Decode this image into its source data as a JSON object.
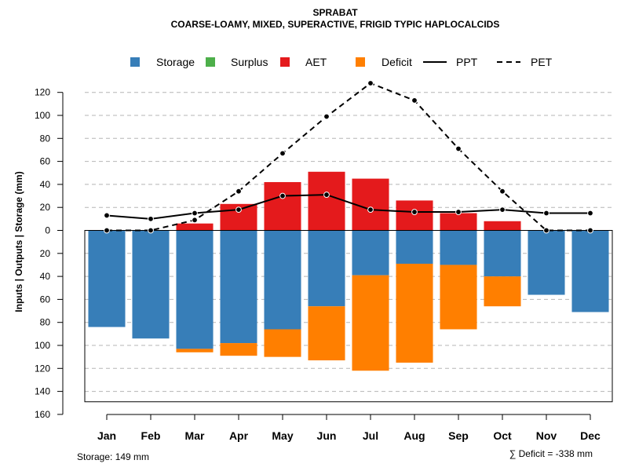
{
  "chart_data": {
    "type": "bar",
    "title": "SPRABAT",
    "subtitle": "COARSE-LOAMY, MIXED, SUPERACTIVE, FRIGID TYPIC HAPLOCALCIDS",
    "ylabel": "Inputs | Outputs | Storage    (mm)",
    "categories": [
      "Jan",
      "Feb",
      "Mar",
      "Apr",
      "May",
      "Jun",
      "Jul",
      "Aug",
      "Sep",
      "Oct",
      "Nov",
      "Dec"
    ],
    "ylim": [
      -160,
      130
    ],
    "yticks": [
      120,
      100,
      80,
      60,
      40,
      20,
      0,
      -20,
      -40,
      -60,
      -80,
      -100,
      -120,
      -140,
      -160
    ],
    "ytick_labels": [
      "120",
      "100",
      "80",
      "60",
      "40",
      "20",
      "0",
      "20",
      "40",
      "60",
      "80",
      "100",
      "120",
      "140",
      "160"
    ],
    "grid": true,
    "legend": [
      {
        "name": "Storage",
        "kind": "box",
        "color": "#377EB8"
      },
      {
        "name": "Surplus",
        "kind": "box",
        "color": "#4DAF4A"
      },
      {
        "name": "AET",
        "kind": "box",
        "color": "#E41A1C"
      },
      {
        "name": "Deficit",
        "kind": "box",
        "color": "#FF7F00"
      },
      {
        "name": "PPT",
        "kind": "line"
      },
      {
        "name": "PET",
        "kind": "dash"
      }
    ],
    "series": [
      {
        "name": "AET",
        "color": "#E41A1C",
        "values": [
          0,
          0,
          6,
          23,
          42,
          51,
          45,
          26,
          15,
          8,
          0,
          0
        ]
      },
      {
        "name": "Storage",
        "color": "#377EB8",
        "values": [
          84,
          94,
          103,
          98,
          86,
          66,
          39,
          29,
          30,
          40,
          56,
          71
        ]
      },
      {
        "name": "Deficit",
        "color": "#FF7F00",
        "values": [
          0,
          0,
          3,
          11,
          24,
          47,
          83,
          86,
          56,
          26,
          0,
          0
        ]
      },
      {
        "name": "PPT",
        "values": [
          13,
          10,
          15,
          18,
          30,
          31,
          18,
          16,
          16,
          18,
          15,
          15
        ]
      },
      {
        "name": "PET",
        "values": [
          0,
          0,
          9,
          34,
          67,
          99,
          128,
          113,
          71,
          34,
          0,
          0
        ]
      }
    ],
    "storage_capacity": 149
  },
  "footer": {
    "storage": "Storage: 149 mm",
    "deficit": "∑ Deficit = -338 mm"
  }
}
